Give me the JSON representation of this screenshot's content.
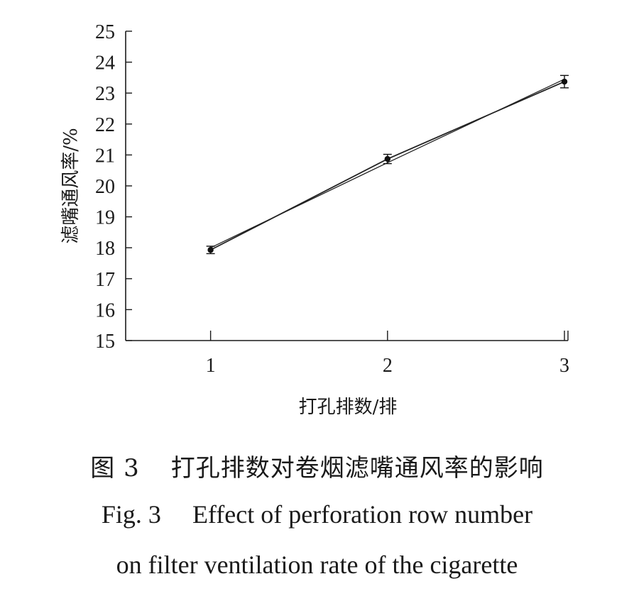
{
  "chart_data": {
    "type": "line",
    "xlabel": "打孔排数/排",
    "ylabel": "滤嘴通风率/%",
    "categories": [
      "1",
      "2",
      "3"
    ],
    "x": [
      1,
      2,
      3
    ],
    "series": [
      {
        "values": [
          17.93,
          20.87,
          23.37
        ],
        "error": [
          0.12,
          0.15,
          0.2
        ]
      },
      {
        "values": [
          18.0,
          20.75,
          23.45
        ]
      }
    ],
    "ylim": [
      15,
      25
    ],
    "yticks": [
      "15",
      "16",
      "17",
      "18",
      "19",
      "20",
      "21",
      "22",
      "23",
      "24",
      "25"
    ],
    "grid": false,
    "legend": "none"
  },
  "caption": {
    "zh_number": "图 3",
    "zh_text": "打孔排数对卷烟滤嘴通风率的影响",
    "en_number": "Fig. 3",
    "en_text_line1": "Effect of perforation row number",
    "en_text_line2": "on filter ventilation rate of the cigarette"
  }
}
